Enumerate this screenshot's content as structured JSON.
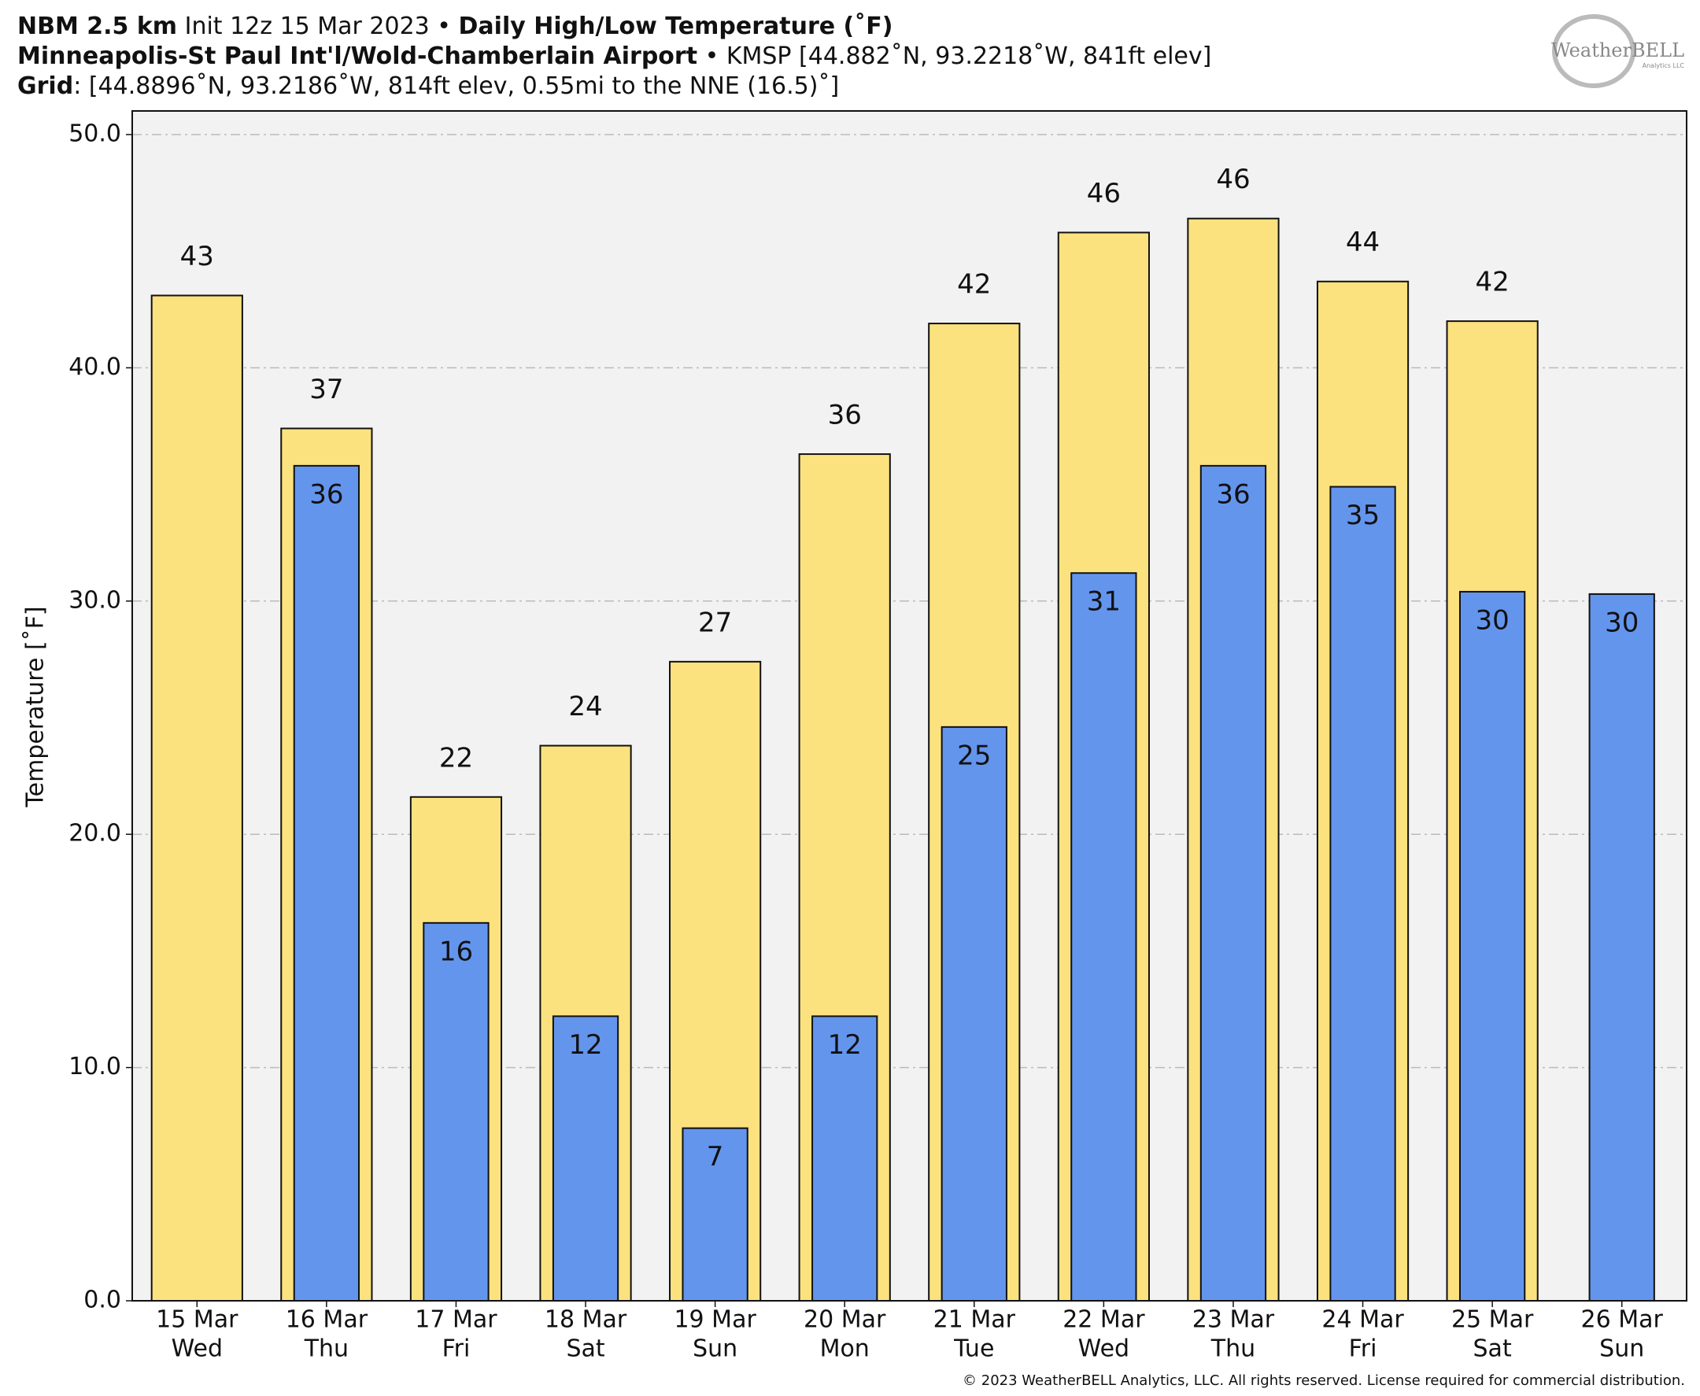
{
  "chart_data": {
    "type": "bar",
    "title_lines": [
      [
        {
          "text": "NBM 2.5 km",
          "bold": true
        },
        {
          "text": " Init 12z 15 Mar 2023 • ",
          "bold": false
        },
        {
          "text": "Daily High/Low Temperature (˚F)",
          "bold": true
        }
      ],
      [
        {
          "text": "Minneapolis-St Paul Int'l/Wold-Chamberlain Airport",
          "bold": true
        },
        {
          "text": " • KMSP [44.882˚N, 93.2218˚W, 841ft elev]",
          "bold": false
        }
      ],
      [
        {
          "text": "Grid",
          "bold": true
        },
        {
          "text": ": [44.8896˚N, 93.2186˚W, 814ft elev, 0.55mi to the NNE (16.5)˚]",
          "bold": false
        }
      ]
    ],
    "y_label": "Temperature [˚F]",
    "logo": "WeatherBELL",
    "logo_sub": "Analytics LLC",
    "footer": "© 2023 WeatherBELL Analytics, LLC. All rights reserved. License required for commercial distribution.",
    "categories": [
      [
        "15 Mar",
        "Wed"
      ],
      [
        "16 Mar",
        "Thu"
      ],
      [
        "17 Mar",
        "Fri"
      ],
      [
        "18 Mar",
        "Sat"
      ],
      [
        "19 Mar",
        "Sun"
      ],
      [
        "20 Mar",
        "Mon"
      ],
      [
        "21 Mar",
        "Tue"
      ],
      [
        "22 Mar",
        "Wed"
      ],
      [
        "23 Mar",
        "Thu"
      ],
      [
        "24 Mar",
        "Fri"
      ],
      [
        "25 Mar",
        "Sat"
      ],
      [
        "26 Mar",
        "Sun"
      ]
    ],
    "series": [
      {
        "name": "High",
        "color": "#fbe27f",
        "values": [
          43.1,
          37.4,
          21.6,
          23.8,
          27.4,
          36.3,
          41.9,
          45.8,
          46.4,
          43.7,
          42.0,
          null
        ],
        "value_labels": [
          "43",
          "37",
          "22",
          "24",
          "27",
          "36",
          "42",
          "46",
          "46",
          "44",
          "42",
          null
        ]
      },
      {
        "name": "Low",
        "color": "#6495ed",
        "values": [
          null,
          35.8,
          16.2,
          12.2,
          7.4,
          12.2,
          24.6,
          31.2,
          35.8,
          34.9,
          30.4,
          30.3
        ],
        "value_labels": [
          null,
          "36",
          "16",
          "12",
          "7",
          "12",
          "25",
          "31",
          "36",
          "35",
          "30",
          "30"
        ]
      }
    ],
    "ylim": [
      0,
      50
    ],
    "yticks": [
      {
        "value": 0,
        "label": "0.0"
      },
      {
        "value": 10,
        "label": "10.0"
      },
      {
        "value": 20,
        "label": "20.0"
      },
      {
        "value": 30,
        "label": "30.0"
      },
      {
        "value": 40,
        "label": "40.0"
      },
      {
        "value": 50,
        "label": "50.0"
      }
    ],
    "grid": true
  }
}
